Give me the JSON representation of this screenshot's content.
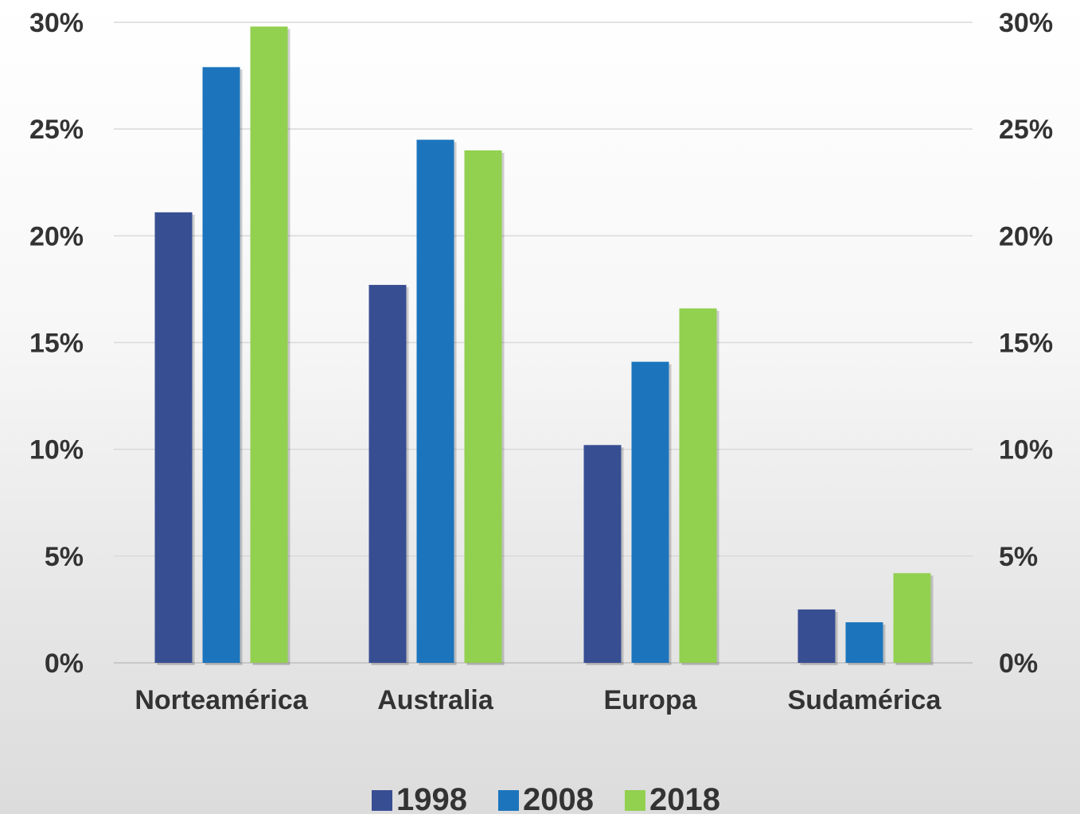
{
  "chart_data": {
    "type": "bar",
    "categories": [
      "Norteamérica",
      "Australia",
      "Europa",
      "Sudamérica"
    ],
    "series": [
      {
        "name": "1998",
        "color": "#384E93",
        "values": [
          21.1,
          17.7,
          10.2,
          2.5
        ]
      },
      {
        "name": "2008",
        "color": "#1C75BC",
        "values": [
          27.9,
          24.5,
          14.1,
          1.9
        ]
      },
      {
        "name": "2018",
        "color": "#92D050",
        "values": [
          29.8,
          24.0,
          16.6,
          4.2
        ]
      }
    ],
    "ylim": [
      0,
      30
    ],
    "yticks": [
      "0%",
      "5%",
      "10%",
      "15%",
      "20%",
      "25%",
      "30%"
    ],
    "ytick_values": [
      0,
      5,
      10,
      15,
      20,
      25,
      30
    ],
    "secondary_axis": true,
    "grid": true,
    "legend_position": "bottom"
  }
}
